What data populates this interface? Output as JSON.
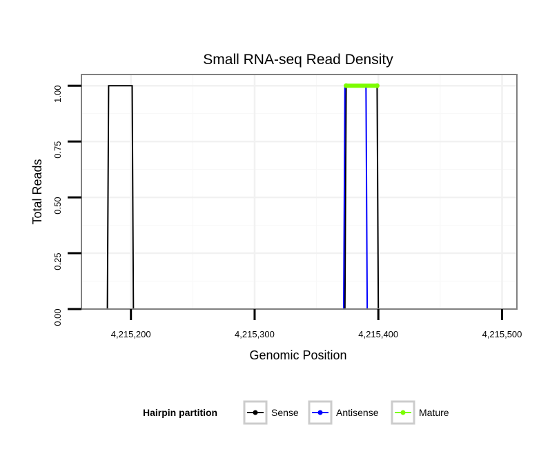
{
  "chart_data": {
    "type": "line",
    "title": "Small RNA-seq Read Density",
    "xlabel": "Genomic Position",
    "ylabel": "Total Reads",
    "xlim": [
      4215160,
      4215512
    ],
    "ylim": [
      0,
      1.05
    ],
    "x_ticks": [
      4215200,
      4215300,
      4215400,
      4215500
    ],
    "x_tick_labels": [
      "4,215,200",
      "4,215,300",
      "4,215,400",
      "4,215,500"
    ],
    "y_ticks": [
      0,
      0.25,
      0.5,
      0.75,
      1.0
    ],
    "y_tick_labels": [
      "0.00",
      "0.25",
      "0.50",
      "0.75",
      "1.00"
    ],
    "grid": true,
    "legend": {
      "title": "Hairpin partition",
      "position": "bottom",
      "entries": [
        {
          "label": "Sense",
          "color": "#000000"
        },
        {
          "label": "Antisense",
          "color": "#0000ff"
        },
        {
          "label": "Mature",
          "color": "#7cfc00"
        }
      ]
    },
    "series": [
      {
        "name": "Sense",
        "color": "#000000",
        "points": [
          [
            4215163,
            0
          ],
          [
            4215181,
            0
          ],
          [
            4215182,
            1
          ],
          [
            4215201,
            1
          ],
          [
            4215202,
            0
          ],
          [
            4215373,
            0
          ],
          [
            4215374,
            1
          ],
          [
            4215399,
            1
          ],
          [
            4215400,
            0
          ],
          [
            4215506,
            0
          ]
        ]
      },
      {
        "name": "Antisense",
        "color": "#0000ff",
        "points": [
          [
            4215181,
            0
          ],
          [
            4215202,
            0
          ],
          [
            4215372,
            0
          ],
          [
            4215373,
            1
          ],
          [
            4215390,
            1
          ],
          [
            4215391,
            0
          ],
          [
            4215400,
            0
          ]
        ]
      },
      {
        "name": "Mature",
        "color": "#7cfc00",
        "points": [
          [
            4215374,
            1
          ],
          [
            4215399,
            1
          ]
        ]
      }
    ]
  }
}
